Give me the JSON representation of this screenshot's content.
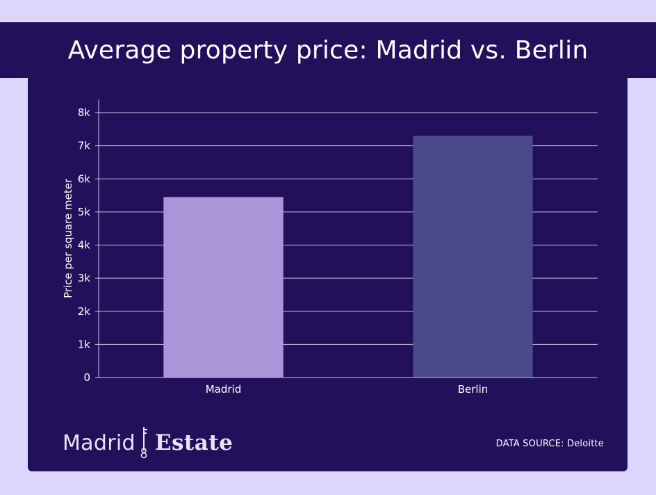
{
  "chart_data": {
    "type": "bar",
    "title": "Average property price: Madrid vs. Berlin",
    "categories": [
      "Madrid",
      "Berlin"
    ],
    "values": [
      5450,
      7300
    ],
    "colors": [
      "#ab95d8",
      "#484a8a"
    ],
    "xlabel": "",
    "ylabel": "Price per square meter",
    "ylim": [
      0,
      8000
    ],
    "yticks": [
      0,
      1000,
      2000,
      3000,
      4000,
      5000,
      6000,
      7000,
      8000
    ],
    "ytick_labels": [
      "0",
      "1k",
      "2k",
      "3k",
      "4k",
      "5k",
      "6k",
      "7k",
      "8k"
    ],
    "grid": true
  },
  "footer": {
    "logo_word_1": "Madrid",
    "logo_word_2": "Estate",
    "source_label": "DATA SOURCE: Deloitte"
  },
  "colors": {
    "background": "#dcd6fc",
    "panel": "#22105a",
    "gridline": "#c8c2e6",
    "text": "#ffffff"
  }
}
